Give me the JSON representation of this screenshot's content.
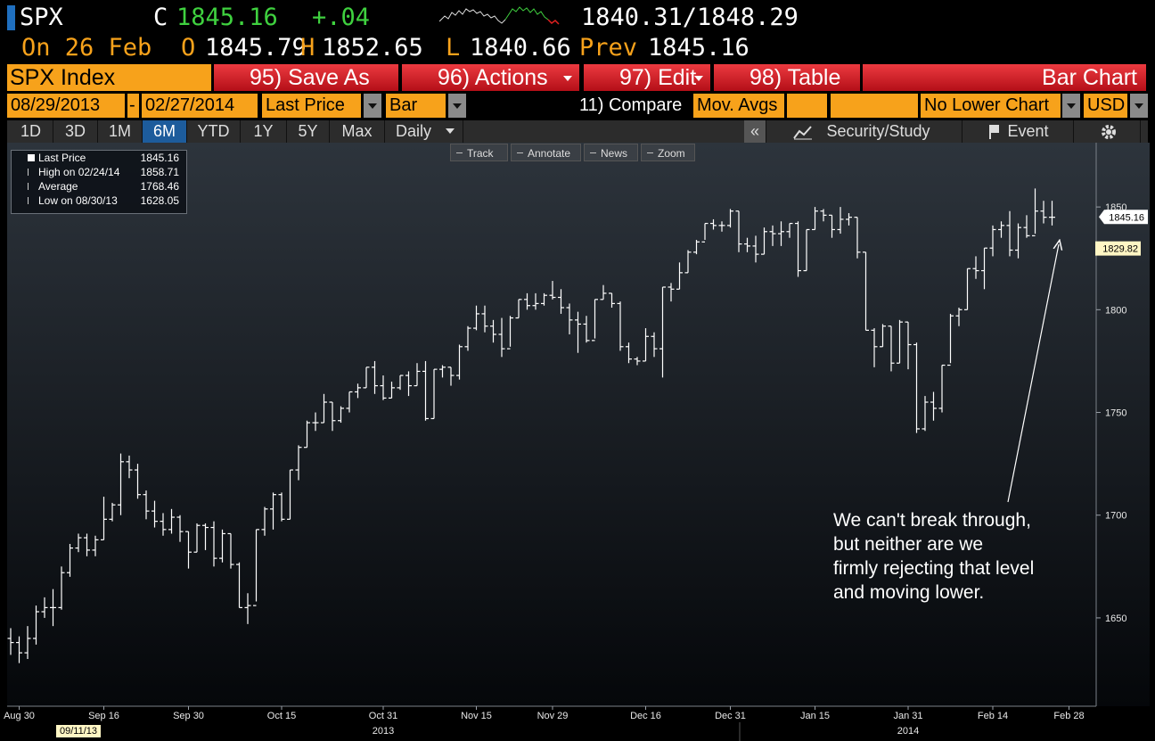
{
  "header": {
    "ticker": "SPX",
    "close_label": "C",
    "close": "1845.16",
    "change": "+.04",
    "bid_ask": "1840.31/1848.29",
    "date": "On 26 Feb",
    "open_label": "O",
    "open": "1845.79",
    "high_label": "H",
    "high": "1852.65",
    "low_label": "L",
    "low": "1840.66",
    "prev_label": "Prev",
    "prev": "1845.16"
  },
  "menu": {
    "security": "SPX Index",
    "buttons": [
      {
        "label": "95) Save As"
      },
      {
        "label": "96) Actions",
        "dropdown": true
      },
      {
        "label": "97) Edit",
        "dropdown": true
      },
      {
        "label": "98) Table"
      }
    ],
    "view": "Bar Chart"
  },
  "settings": {
    "start": "08/29/2013",
    "dash": "-",
    "end": "02/27/2014",
    "field": "Last Price",
    "style": "Bar",
    "compare": "11) Compare",
    "mov_avgs": "Mov. Avgs",
    "lower_chart": "No Lower Chart",
    "currency": "USD"
  },
  "periods": [
    {
      "label": "1D"
    },
    {
      "label": "3D"
    },
    {
      "label": "1M"
    },
    {
      "label": "6M",
      "selected": true
    },
    {
      "label": "YTD"
    },
    {
      "label": "1Y"
    },
    {
      "label": "5Y"
    },
    {
      "label": "Max"
    }
  ],
  "frequency": "Daily",
  "collapse": "«",
  "study": "Security/Study",
  "event": "Event",
  "chart_tools": [
    "Track",
    "Annotate",
    "News",
    "Zoom"
  ],
  "chart_data": {
    "type": "ohlc",
    "color": "#ffffff",
    "categories": [
      null,
      "Aug 30",
      null,
      null,
      null,
      null,
      null,
      null,
      null,
      null,
      null,
      "Sep 16",
      null,
      null,
      null,
      null,
      null,
      null,
      null,
      null,
      null,
      "Sep 30",
      null,
      null,
      null,
      null,
      null,
      null,
      null,
      null,
      null,
      null,
      "Oct 15",
      null,
      null,
      null,
      null,
      null,
      null,
      null,
      null,
      null,
      null,
      null,
      "Oct 31",
      null,
      null,
      null,
      null,
      null,
      null,
      null,
      null,
      null,
      null,
      "Nov 15",
      null,
      null,
      null,
      null,
      null,
      null,
      null,
      null,
      "Nov 29",
      null,
      null,
      null,
      null,
      null,
      null,
      null,
      null,
      null,
      null,
      "Dec 16",
      null,
      null,
      null,
      null,
      null,
      null,
      null,
      null,
      null,
      "Dec 31",
      null,
      null,
      null,
      null,
      null,
      null,
      null,
      null,
      null,
      "Jan 15",
      null,
      null,
      null,
      null,
      null,
      null,
      null,
      null,
      null,
      null,
      "Jan 31",
      null,
      null,
      null,
      null,
      null,
      null,
      null,
      null,
      null,
      "Feb 14",
      null,
      null,
      null,
      null,
      null,
      null,
      null,
      null,
      "Feb 28"
    ],
    "sublabels": [
      null,
      null,
      null,
      null,
      null,
      null,
      null,
      null,
      "09/11/13",
      null,
      null,
      null,
      null,
      null,
      null,
      null,
      null,
      null,
      null,
      null,
      null,
      null,
      null,
      null,
      null,
      null,
      null,
      null,
      null,
      null,
      null,
      null,
      null,
      null,
      null,
      null,
      null,
      null,
      null,
      null,
      null,
      null,
      null,
      null,
      "2013",
      null,
      null,
      null,
      null,
      null,
      null,
      null,
      null,
      null,
      null,
      null,
      null,
      null,
      null,
      null,
      null,
      null,
      null,
      null,
      null,
      null,
      null,
      null,
      null,
      null,
      null,
      null,
      null,
      null,
      null,
      null,
      null,
      null,
      null,
      null,
      null,
      null,
      null,
      null,
      null,
      null,
      null,
      null,
      null,
      null,
      null,
      null,
      null,
      null,
      null,
      null,
      null,
      null,
      null,
      null,
      null,
      null,
      null,
      null,
      null,
      null,
      "2014",
      null,
      null,
      null,
      null,
      null,
      null,
      null,
      null,
      null,
      null,
      null,
      null,
      null,
      null,
      null,
      null,
      null,
      null,
      null
    ],
    "open": [
      1640,
      1638,
      1633,
      1640,
      1653,
      1655,
      1655,
      1672,
      1684,
      1689,
      1683,
      1688,
      1698,
      1705,
      1726,
      1722,
      1710,
      1702,
      1697,
      1693,
      1699,
      1692,
      1682,
      1695,
      1694,
      1679,
      1691,
      1676,
      1655,
      1656,
      1693,
      1703,
      1710,
      1698,
      1722,
      1733,
      1745,
      1745,
      1755,
      1746,
      1752,
      1760,
      1762,
      1772,
      1763,
      1757,
      1762,
      1768,
      1763,
      1770,
      1747,
      1771,
      1772,
      1768,
      1782,
      1791,
      1798,
      1792,
      1788,
      1781,
      1796,
      1805,
      1802,
      1803,
      1807,
      1806,
      1801,
      1795,
      1793,
      1785,
      1805,
      1808,
      1803,
      1782,
      1776,
      1775,
      1787,
      1781,
      1811,
      1810,
      1818,
      1828,
      1833,
      1842,
      1841,
      1841,
      1848,
      1832,
      1831,
      1827,
      1838,
      1837,
      1838,
      1842,
      1819,
      1839,
      1848,
      1846,
      1839,
      1844,
      1845,
      1828,
      1790,
      1782,
      1792,
      1774,
      1794,
      1783,
      1742,
      1755,
      1752,
      1773,
      1797,
      1800,
      1820,
      1819,
      1830,
      1839,
      1841,
      1829,
      1840,
      1836,
      1848,
      1845,
      null,
      null
    ],
    "high": [
      1645,
      1641,
      1646,
      1656,
      1660,
      1664,
      1675,
      1686,
      1691,
      1691,
      1690,
      1709,
      1706,
      1730,
      1729,
      1725,
      1712,
      1707,
      1701,
      1703,
      1700,
      1692,
      1696,
      1696,
      1697,
      1693,
      1691,
      1677,
      1662,
      1693,
      1704,
      1711,
      1711,
      1722,
      1734,
      1746,
      1750,
      1759,
      1755,
      1753,
      1760,
      1764,
      1772,
      1775,
      1768,
      1765,
      1768,
      1770,
      1774,
      1775,
      1771,
      1773,
      1772,
      1783,
      1792,
      1802,
      1802,
      1795,
      1796,
      1797,
      1805,
      1808,
      1808,
      1808,
      1814,
      1810,
      1803,
      1799,
      1797,
      1805,
      1812,
      1808,
      1804,
      1784,
      1777,
      1791,
      1789,
      1811,
      1813,
      1823,
      1829,
      1834,
      1842,
      1844,
      1843,
      1849,
      1848,
      1835,
      1836,
      1840,
      1841,
      1843,
      1842,
      1843,
      1839,
      1850,
      1849,
      1846,
      1850,
      1847,
      1845,
      1828,
      1791,
      1793,
      1792,
      1795,
      1794,
      1784,
      1758,
      1760,
      1773,
      1798,
      1801,
      1820,
      1826,
      1830,
      1841,
      1843,
      1848,
      1842,
      1846,
      1859,
      1853,
      1853,
      null,
      null
    ],
    "low": [
      1632,
      1628,
      1630,
      1637,
      1650,
      1646,
      1654,
      1670,
      1682,
      1680,
      1680,
      1688,
      1697,
      1700,
      1718,
      1708,
      1698,
      1694,
      1690,
      1691,
      1687,
      1674,
      1682,
      1683,
      1675,
      1677,
      1674,
      1655,
      1647,
      1658,
      1690,
      1693,
      1697,
      1698,
      1717,
      1733,
      1741,
      1745,
      1741,
      1745,
      1750,
      1757,
      1762,
      1759,
      1756,
      1757,
      1761,
      1758,
      1763,
      1746,
      1747,
      1767,
      1763,
      1766,
      1780,
      1790,
      1789,
      1784,
      1777,
      1782,
      1796,
      1800,
      1800,
      1802,
      1805,
      1798,
      1788,
      1779,
      1784,
      1786,
      1805,
      1801,
      1780,
      1774,
      1773,
      1775,
      1777,
      1767,
      1804,
      1810,
      1818,
      1827,
      1834,
      1839,
      1838,
      1840,
      1828,
      1828,
      1823,
      1827,
      1831,
      1831,
      1835,
      1816,
      1819,
      1839,
      1843,
      1835,
      1837,
      1841,
      1825,
      1790,
      1772,
      1782,
      1770,
      1774,
      1771,
      1740,
      1741,
      1746,
      1750,
      1774,
      1792,
      1800,
      1815,
      1810,
      1826,
      1835,
      1826,
      1825,
      1835,
      1837,
      1842,
      1841,
      null,
      null
    ],
    "close": [
      1638,
      1633,
      1640,
      1653,
      1655,
      1655,
      1672,
      1684,
      1689,
      1683,
      1688,
      1698,
      1705,
      1726,
      1722,
      1710,
      1702,
      1697,
      1693,
      1699,
      1692,
      1682,
      1695,
      1694,
      1679,
      1691,
      1676,
      1655,
      1656,
      1693,
      1703,
      1710,
      1698,
      1722,
      1733,
      1745,
      1745,
      1755,
      1746,
      1752,
      1760,
      1762,
      1772,
      1763,
      1757,
      1762,
      1768,
      1763,
      1770,
      1747,
      1771,
      1772,
      1768,
      1782,
      1791,
      1798,
      1792,
      1788,
      1781,
      1796,
      1805,
      1802,
      1803,
      1807,
      1806,
      1801,
      1795,
      1793,
      1785,
      1805,
      1808,
      1803,
      1782,
      1776,
      1775,
      1787,
      1781,
      1811,
      1810,
      1818,
      1828,
      1833,
      1842,
      1841,
      1841,
      1848,
      1832,
      1831,
      1827,
      1838,
      1837,
      1838,
      1842,
      1819,
      1839,
      1848,
      1846,
      1839,
      1844,
      1845,
      1828,
      1790,
      1782,
      1792,
      1774,
      1794,
      1783,
      1742,
      1755,
      1752,
      1773,
      1797,
      1800,
      1820,
      1819,
      1830,
      1839,
      1841,
      1829,
      1840,
      1836,
      1848,
      1845,
      1845,
      null,
      null
    ],
    "ylim": [
      1607,
      1880
    ],
    "yticks": [
      1650,
      1700,
      1750,
      1800,
      1850
    ],
    "price_tags": [
      1845.16,
      1829.82
    ],
    "price_tag_colors": [
      "#ffffff",
      "#fff6c4"
    ],
    "legend": [
      {
        "label": "Last Price",
        "value": 1845.16
      },
      {
        "label": "High on 02/24/14",
        "value": 1858.71
      },
      {
        "label": "Average",
        "value": 1768.46
      },
      {
        "label": "Low on 08/30/13",
        "value": 1628.05
      }
    ],
    "annotation": [
      "We can't break through,",
      "but neither are we",
      "firmly rejecting that level",
      "and moving lower."
    ]
  }
}
